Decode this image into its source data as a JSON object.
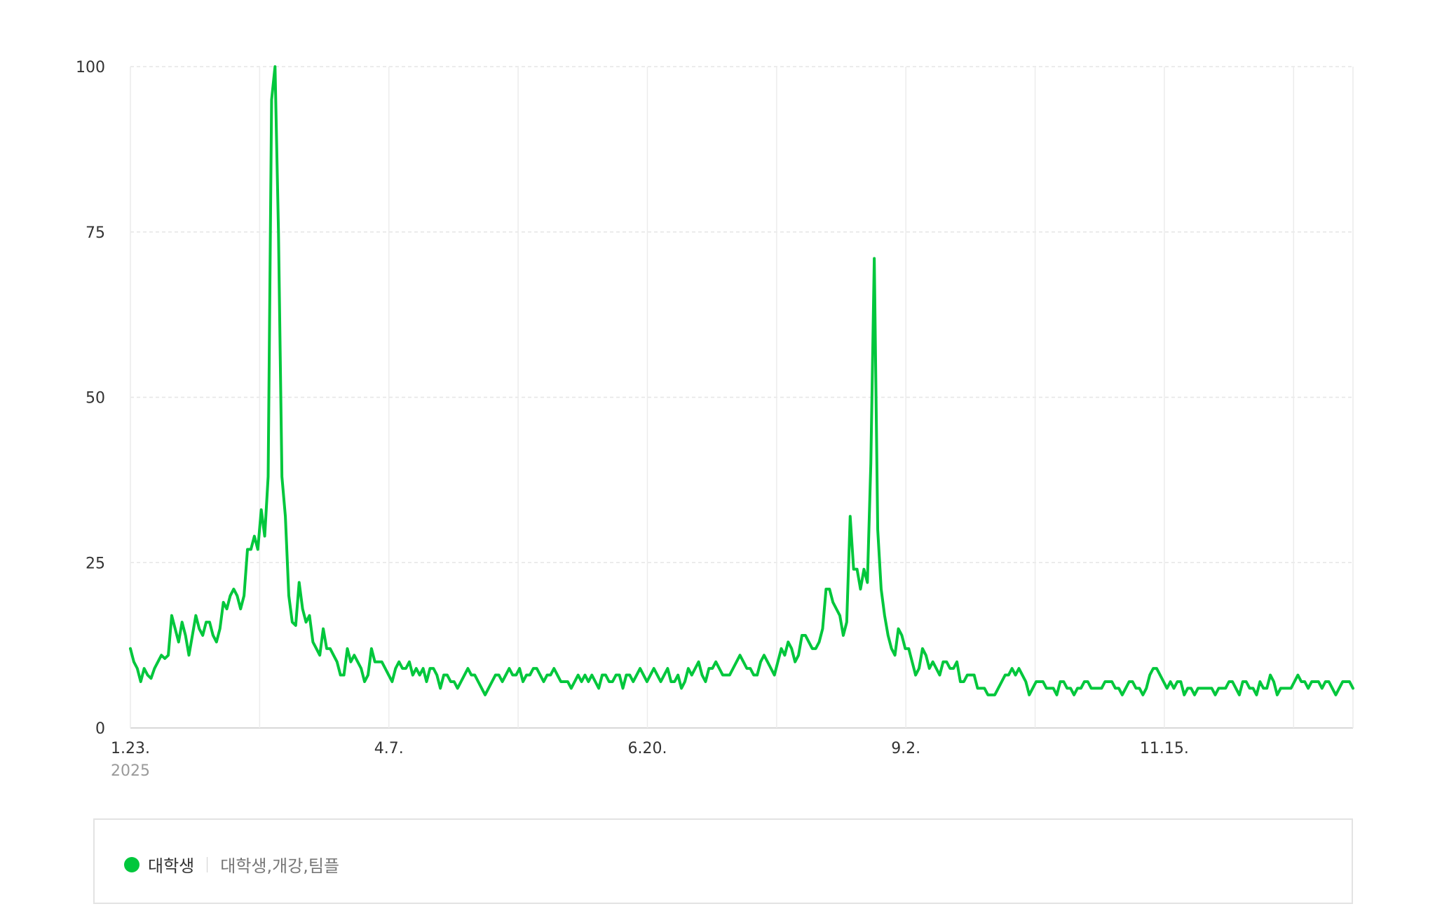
{
  "chart_data": {
    "type": "line",
    "title": "",
    "xlabel": "",
    "ylabel": "",
    "ylim": [
      0,
      100
    ],
    "y_ticks": [
      "0",
      "25",
      "50",
      "75",
      "100"
    ],
    "x_ticks": [
      {
        "label": "1.23.",
        "date": "2025-01-23"
      },
      {
        "label": "4.7.",
        "date": "2025-04-07"
      },
      {
        "label": "6.20.",
        "date": "2025-06-20"
      },
      {
        "label": "9.2.",
        "date": "2025-09-02"
      },
      {
        "label": "11.15.",
        "date": "2025-11-15"
      }
    ],
    "year_label": "2025",
    "x_start": "2025-01-23",
    "x_end": "2026-01-08",
    "grid": true,
    "series": [
      {
        "name": "대학생",
        "color": "#00c73c",
        "values": [
          12,
          10,
          9,
          7,
          9,
          8,
          7.5,
          9,
          10,
          11,
          10.5,
          11,
          17,
          15,
          13,
          16,
          14,
          11,
          14,
          17,
          15,
          14,
          16,
          16,
          14,
          13,
          15,
          19,
          18,
          20,
          21,
          20,
          18,
          20,
          27,
          27,
          29,
          27,
          33,
          29,
          38,
          95,
          100,
          75,
          38,
          32,
          20,
          16,
          15.5,
          22,
          18,
          16,
          17,
          13,
          12,
          11,
          15,
          12,
          12,
          11,
          10,
          8,
          8,
          12,
          10,
          11,
          10,
          9,
          7,
          8,
          12,
          10,
          10,
          10,
          9,
          8,
          7,
          9,
          10,
          9,
          9,
          10,
          8,
          9,
          8,
          9,
          7,
          9,
          9,
          8,
          6,
          8,
          8,
          7,
          7,
          6,
          7,
          8,
          9,
          8,
          8,
          7,
          6,
          5,
          6,
          7,
          8,
          8,
          7,
          8,
          9,
          8,
          8,
          9,
          7,
          8,
          8,
          9,
          9,
          8,
          7,
          8,
          8,
          9,
          8,
          7,
          7,
          7,
          6,
          7,
          8,
          7,
          8,
          7,
          8,
          7,
          6,
          8,
          8,
          7,
          7,
          8,
          8,
          6,
          8,
          8,
          7,
          8,
          9,
          8,
          7,
          8,
          9,
          8,
          7,
          8,
          9,
          7,
          7,
          8,
          6,
          7,
          9,
          8,
          9,
          10,
          8,
          7,
          9,
          9,
          10,
          9,
          8,
          8,
          8,
          9,
          10,
          11,
          10,
          9,
          9,
          8,
          8,
          10,
          11,
          10,
          9,
          8,
          10,
          12,
          11,
          13,
          12,
          10,
          11,
          14,
          14,
          13,
          12,
          12,
          13,
          15,
          21,
          21,
          19,
          18,
          17,
          14,
          16,
          32,
          24,
          24,
          21,
          24,
          22,
          40,
          71,
          30,
          21,
          17,
          14,
          12,
          11,
          15,
          14,
          12,
          12,
          10,
          8,
          9,
          12,
          11,
          9,
          10,
          9,
          8,
          10,
          10,
          9,
          9,
          10,
          7,
          7,
          8,
          8,
          8,
          6,
          6,
          6,
          5,
          5,
          5,
          6,
          7,
          8,
          8,
          9,
          8,
          9,
          8,
          7,
          5,
          6,
          7,
          7,
          7,
          6,
          6,
          6,
          5,
          7,
          7,
          6,
          6,
          5,
          6,
          6,
          7,
          7,
          6,
          6,
          6,
          6,
          7,
          7,
          7,
          6,
          6,
          5,
          6,
          7,
          7,
          6,
          6,
          5,
          6,
          8,
          9,
          9,
          8,
          7,
          6,
          7,
          6,
          7,
          7,
          5,
          6,
          6,
          5,
          6,
          6,
          6,
          6,
          6,
          5,
          6,
          6,
          6,
          7,
          7,
          6,
          5,
          7,
          7,
          6,
          6,
          5,
          7,
          6,
          6,
          8,
          7,
          5,
          6,
          6,
          6,
          6,
          7,
          8,
          7,
          7,
          6,
          7,
          7,
          7,
          6,
          7,
          7,
          6,
          5,
          6,
          7,
          7,
          7,
          6
        ]
      }
    ],
    "legend": {
      "name": "대학생",
      "keywords": "대학생,개강,팀플"
    }
  }
}
